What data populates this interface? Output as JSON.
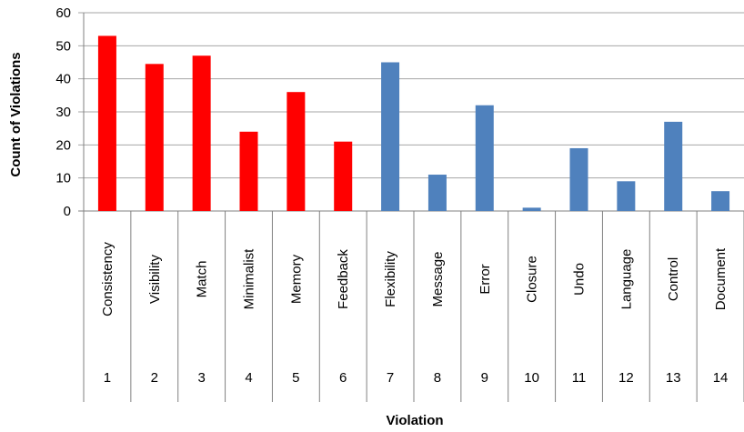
{
  "chart_data": {
    "type": "bar",
    "xlabel": "Violation",
    "ylabel": "Count of Violations",
    "ylim": [
      0,
      60
    ],
    "yticks": [
      0,
      10,
      20,
      30,
      40,
      50,
      60
    ],
    "grid": true,
    "colors": {
      "red": "#ff0000",
      "blue": "#4f81bd"
    },
    "categories": [
      {
        "name": "Consistency",
        "number": "1",
        "value": 53,
        "color": "red"
      },
      {
        "name": "Visibility",
        "number": "2",
        "value": 44.5,
        "color": "red"
      },
      {
        "name": "Match",
        "number": "3",
        "value": 47,
        "color": "red"
      },
      {
        "name": "Minimalist",
        "number": "4",
        "value": 24,
        "color": "red"
      },
      {
        "name": "Memory",
        "number": "5",
        "value": 36,
        "color": "red"
      },
      {
        "name": "Feedback",
        "number": "6",
        "value": 21,
        "color": "red"
      },
      {
        "name": "Flexibility",
        "number": "7",
        "value": 45,
        "color": "blue"
      },
      {
        "name": "Message",
        "number": "8",
        "value": 11,
        "color": "blue"
      },
      {
        "name": "Error",
        "number": "9",
        "value": 32,
        "color": "blue"
      },
      {
        "name": "Closure",
        "number": "10",
        "value": 1,
        "color": "blue"
      },
      {
        "name": "Undo",
        "number": "11",
        "value": 19,
        "color": "blue"
      },
      {
        "name": "Language",
        "number": "12",
        "value": 9,
        "color": "blue"
      },
      {
        "name": "Control",
        "number": "13",
        "value": 27,
        "color": "blue"
      },
      {
        "name": "Document",
        "number": "14",
        "value": 6,
        "color": "blue"
      }
    ]
  }
}
